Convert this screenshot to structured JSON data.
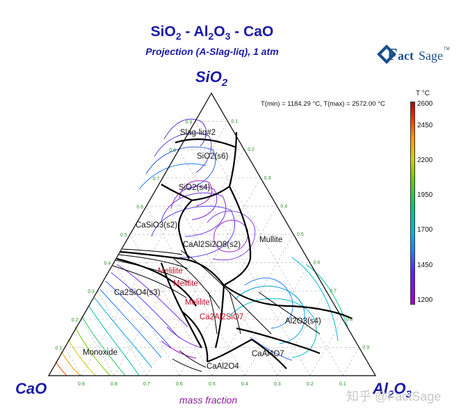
{
  "title": {
    "a": "SiO",
    "a_sub": "2",
    "sep1": " - ",
    "b": "Al",
    "b_sub1": "2",
    "b_mid": "O",
    "b_sub2": "3",
    "sep2": " - ",
    "c": "CaO"
  },
  "subtitle": "Projection (A-Slag-liq), 1 atm",
  "logo": {
    "f": "F",
    "act": "act",
    "sage": "Sage",
    "tm": "TM"
  },
  "apex": {
    "top": "SiO",
    "top_sub": "2",
    "left": "CaO",
    "right_a": "Al",
    "right_sub1": "2",
    "right_b": "O",
    "right_sub2": "3"
  },
  "t_info": {
    "text": "T(min) = 1184.29 °C, T(max) = 2572.00 °C"
  },
  "colorbar": {
    "title": "T °C",
    "labels": [
      "2600",
      "2450",
      "2200",
      "1950",
      "1700",
      "1450",
      "1200"
    ]
  },
  "axis_label": "mass fraction",
  "ticks": [
    "0.1",
    "0.2",
    "0.3",
    "0.4",
    "0.5",
    "0.6",
    "0.7",
    "0.8",
    "0.9"
  ],
  "bottom_ticks": [
    "0.9",
    "0.8",
    "0.7",
    "0.6",
    "0.5",
    "0.4",
    "0.3",
    "0.2",
    "0.1"
  ],
  "phases": {
    "slag": "Slag-liq#2",
    "sio2_s6": "SiO2(s6)",
    "sio2_s4": "SiO2(s4)",
    "casio3": "CaSiO3(s2)",
    "anorthite": "CaAl2Si2O8(s2)",
    "mullite": "Mullite",
    "melilite1": "Melilite",
    "melilite2": "Melilite",
    "melilite3": "Melilite",
    "ca2sio4": "Ca2SiO4(s3)",
    "gehlenite": "Ca2Al2SiO7",
    "al2o3": "Al2O3(s4)",
    "monoxide": "Monoxide",
    "caal4o7": "CaAl4O7",
    "caal2o4": "CaAl2O4"
  },
  "watermark": "知乎 @FactSage",
  "colors": {
    "title": "#1a1aa8",
    "phase_red": "#c0102a",
    "axis_label": "#8a1a9a",
    "tick": "#2a8a2a"
  }
}
